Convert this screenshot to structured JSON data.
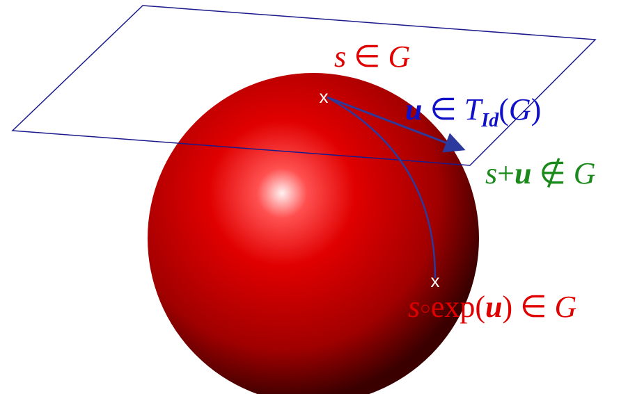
{
  "labels": {
    "s_in_g": [
      "s",
      " ∈ ",
      "G"
    ],
    "u_in_tangent": [
      "u",
      " ∈ ",
      "T",
      "Id",
      "(",
      "G",
      ")"
    ],
    "s_plus_u": [
      "s",
      "+",
      "u",
      " ∉ ",
      "G"
    ],
    "s_exp_u": [
      "s",
      "○",
      "exp(",
      "u",
      ") ∈ ",
      "G"
    ]
  },
  "markers": [
    "x",
    "x"
  ]
}
